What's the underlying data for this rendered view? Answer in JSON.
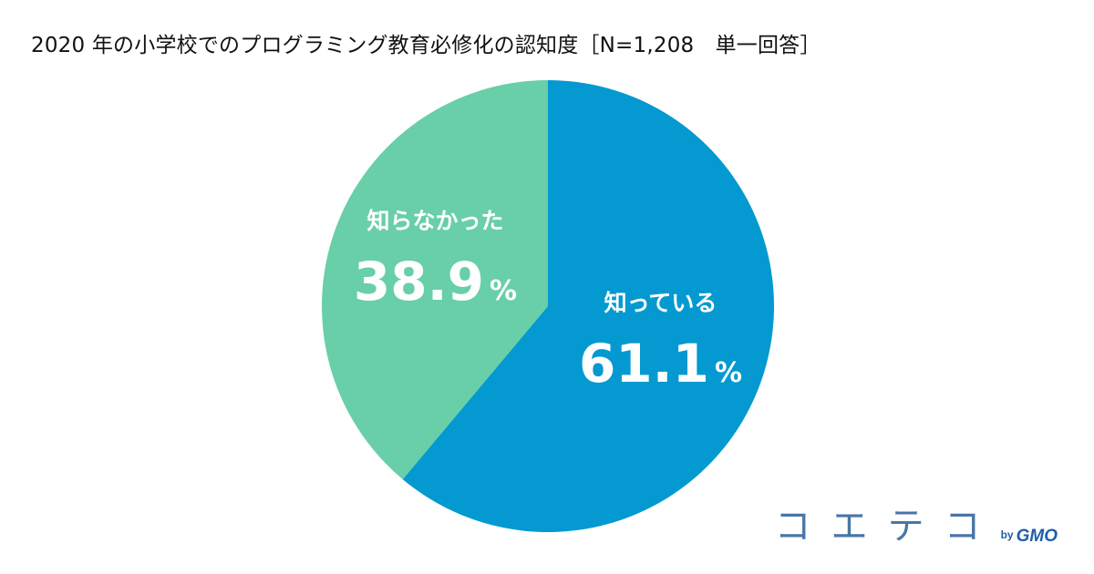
{
  "chart_data": {
    "type": "pie",
    "title": "2020 年の小学校でのプログラミング教育必修化の認知度［N=1,208　単一回答］",
    "slices": [
      {
        "label": "知っている",
        "value": 61.1,
        "value_text": "61.1",
        "unit": "%",
        "color": "#0499d0"
      },
      {
        "label": "知らなかった",
        "value": 38.9,
        "value_text": "38.9",
        "unit": "%",
        "color": "#68cfa8"
      }
    ],
    "start": "12 o'clock",
    "direction": "clockwise",
    "legend": "none",
    "labels": "inside slices"
  },
  "logo": {
    "name": "コエテコ",
    "by": "by",
    "brand": "GMO"
  }
}
